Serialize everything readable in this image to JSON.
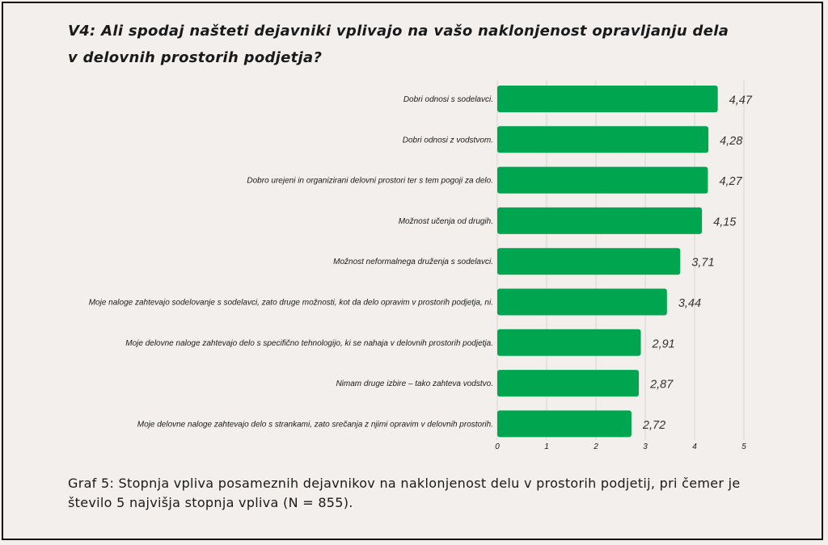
{
  "title": "V4: Ali spodaj našteti dejavniki vplivajo na vašo naklonjenost opravljanju dela v delovnih prostorih podjetja?",
  "caption": "Graf 5: Stopnja vpliva posameznih dejavnikov na naklonjenost delu v prostorih podjetij, pri čemer je število 5 najvišja stopnja vpliva (N = 855).",
  "colors": {
    "bar": "#00a64f",
    "grid": "#d9d6d2",
    "background": "#f2efec"
  },
  "chart_data": {
    "type": "bar",
    "orientation": "horizontal",
    "categories": [
      "Dobri odnosi s sodelavci.",
      "Dobri odnosi z vodstvom.",
      "Dobro urejeni in organizirani delovni prostori ter s tem pogoji za delo.",
      "Možnost učenja od drugih.",
      "Možnost neformalnega druženja s sodelavci.",
      "Moje naloge zahtevajo sodelovanje s sodelavci, zato druge možnosti, kot da delo opravim v prostorih podjetja, ni.",
      "Moje delovne naloge zahtevajo delo s specifično tehnologijo, ki se nahaja v delovnih prostorih podjetja.",
      "Nimam druge izbire – tako zahteva vodstvo.",
      "Moje delovne naloge zahtevajo delo s strankami, zato srečanja z njimi opravim v delovnih prostorih."
    ],
    "values": [
      4.47,
      4.28,
      4.27,
      4.15,
      3.71,
      3.44,
      2.91,
      2.87,
      2.72
    ],
    "value_labels": [
      "4,47",
      "4,28",
      "4,27",
      "4,15",
      "3,71",
      "3,44",
      "2,91",
      "2,87",
      "2,72"
    ],
    "xlim": [
      0,
      5
    ],
    "xticks": [
      "0",
      "1",
      "2",
      "3",
      "4",
      "5"
    ],
    "grid": true
  }
}
